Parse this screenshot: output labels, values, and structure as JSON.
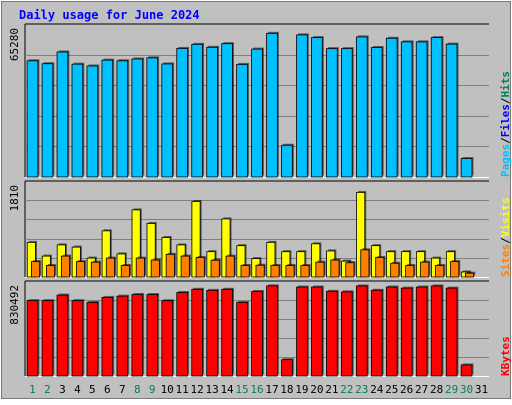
{
  "chart_data": {
    "type": "bar",
    "title": "Daily usage for June 2024",
    "categories": [
      "1",
      "2",
      "3",
      "4",
      "5",
      "6",
      "7",
      "8",
      "9",
      "10",
      "11",
      "12",
      "13",
      "14",
      "15",
      "16",
      "17",
      "18",
      "19",
      "20",
      "21",
      "22",
      "23",
      "24",
      "25",
      "26",
      "27",
      "28",
      "29",
      "30",
      "31"
    ],
    "weekend_days": [
      "1",
      "2",
      "8",
      "9",
      "15",
      "16",
      "22",
      "23",
      "29",
      "30"
    ],
    "panels": [
      {
        "id": "hits-files-pages",
        "tick_label": "65280",
        "ymax": 65280,
        "series": [
          {
            "name": "Hits",
            "color": "#00805C",
            "values": [
              null,
              null,
              null,
              null,
              null,
              null,
              null,
              null,
              null,
              null,
              null,
              null,
              null,
              null,
              null,
              null,
              null,
              null,
              null,
              null,
              null,
              null,
              null,
              null,
              null,
              null,
              null,
              null,
              null,
              null,
              null
            ]
          },
          {
            "name": "Files",
            "color": "#0000FF",
            "values": [
              null,
              null,
              null,
              null,
              null,
              null,
              null,
              null,
              null,
              null,
              null,
              null,
              null,
              null,
              null,
              null,
              null,
              null,
              null,
              null,
              null,
              null,
              null,
              null,
              null,
              null,
              null,
              null,
              null,
              null,
              null
            ]
          },
          {
            "name": "Pages",
            "color": "#00C0FF",
            "values": [
              51600,
              50300,
              55500,
              50100,
              49300,
              51900,
              51600,
              52400,
              52900,
              50200,
              57100,
              58900,
              57600,
              59200,
              50000,
              56800,
              63800,
              14100,
              63100,
              61900,
              57000,
              57000,
              62200,
              57500,
              61600,
              60000,
              60000,
              61900,
              59000,
              8200,
              null
            ]
          }
        ]
      },
      {
        "id": "visits-sites",
        "tick_label": "1810",
        "ymax": 1810,
        "series": [
          {
            "name": "Visits",
            "color": "#FFFF00",
            "values": [
              696,
              420,
              645,
              601,
              380,
              928,
              464,
              1349,
              1077,
              794,
              645,
              1519,
              509,
              1168,
              630,
              370,
              696,
              509,
              509,
              667,
              524,
              319,
              1701,
              630,
              509,
              509,
              509,
              380,
              509,
              101,
              null
            ]
          },
          {
            "name": "Sites",
            "color": "#FF8000",
            "values": [
              309,
              231,
              420,
              309,
              298,
              380,
              231,
              380,
              340,
              456,
              420,
              393,
              337,
              420,
              231,
              236,
              231,
              231,
              231,
              298,
              340,
              287,
              546,
              393,
              276,
              231,
              298,
              231,
              309,
              77,
              null
            ]
          }
        ]
      },
      {
        "id": "kbytes",
        "tick_label": "830492",
        "ymax": 830492,
        "series": [
          {
            "name": "KBytes",
            "color": "#FF0000",
            "values": [
              703000,
              703000,
              755000,
              703000,
              686000,
              733000,
              745000,
              760000,
              760000,
              702000,
              779000,
              809000,
              799000,
              809000,
              686000,
              789000,
              841000,
              152000,
              830000,
              830000,
              790000,
              785000,
              840000,
              800000,
              830000,
              820000,
              830000,
              840000,
              820000,
              103000,
              null
            ]
          }
        ]
      }
    ],
    "right_labels": [
      {
        "panel": "hits-files-pages",
        "parts": [
          "Pages",
          "/",
          "Files",
          "/",
          "Hits"
        ]
      },
      {
        "panel": "visits-sites",
        "parts": [
          "Sites",
          "/",
          "Visits"
        ]
      },
      {
        "panel": "kbytes",
        "parts": [
          "KBytes"
        ]
      }
    ],
    "colors": {
      "background": "#C0C0C0",
      "title": "#0000FF",
      "weekday_label": "#000000",
      "weekend_label": "#00805C",
      "separator": "#000000",
      "slash": "#000000"
    }
  }
}
